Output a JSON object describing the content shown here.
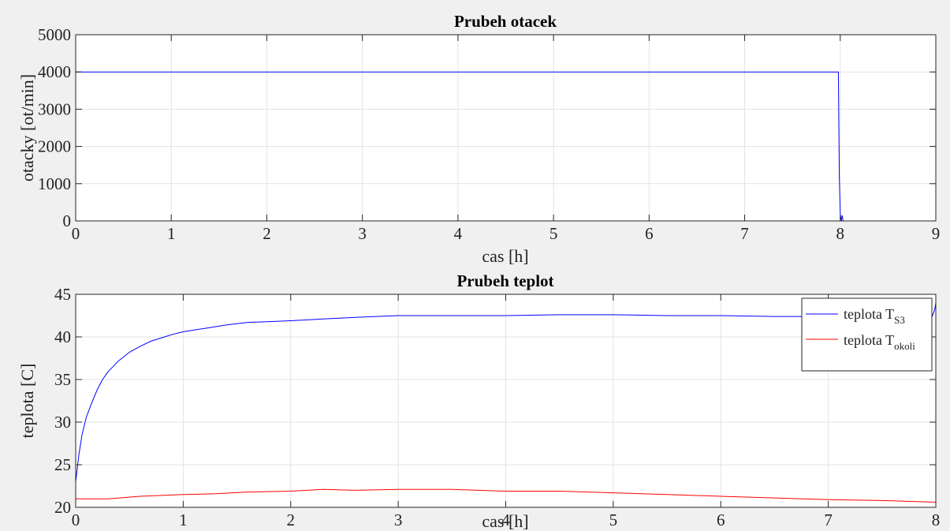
{
  "chart_data": [
    {
      "type": "line",
      "title": "Prubeh otacek",
      "xlabel": "cas [h]",
      "ylabel": "otacky [ot/min]",
      "xlim": [
        0,
        9
      ],
      "ylim": [
        0,
        5000
      ],
      "xticks": [
        0,
        1,
        2,
        3,
        4,
        5,
        6,
        7,
        8,
        9
      ],
      "yticks": [
        0,
        1000,
        2000,
        3000,
        4000,
        5000
      ],
      "grid": true,
      "series": [
        {
          "color": "#0000ff",
          "x": [
            0,
            7.98,
            7.99,
            8.0,
            8.01,
            8.02,
            8.03,
            9.0
          ],
          "y": [
            4000,
            4000,
            1200,
            200,
            0,
            150,
            0,
            0
          ]
        }
      ]
    },
    {
      "type": "line",
      "title": "Prubeh teplot",
      "xlabel": "cas [h]",
      "ylabel": "teplota [C]",
      "xlim": [
        0,
        8
      ],
      "ylim": [
        20,
        45
      ],
      "xticks": [
        0,
        1,
        2,
        3,
        4,
        5,
        6,
        7,
        8
      ],
      "yticks": [
        20,
        25,
        30,
        35,
        40,
        45
      ],
      "grid": true,
      "legend": "top-right",
      "series": [
        {
          "name": "teplota T",
          "name_sub": "S3",
          "color": "#0000ff",
          "x": [
            0,
            0.03,
            0.06,
            0.1,
            0.15,
            0.2,
            0.25,
            0.3,
            0.4,
            0.5,
            0.6,
            0.7,
            0.8,
            0.9,
            1.0,
            1.2,
            1.4,
            1.6,
            1.8,
            2.0,
            2.3,
            2.6,
            3.0,
            3.5,
            4.0,
            4.5,
            5.0,
            5.5,
            6.0,
            6.5,
            7.0,
            7.5,
            7.9,
            7.92,
            7.96,
            7.99,
            8.0
          ],
          "y": [
            23.0,
            26.2,
            28.6,
            30.6,
            32.3,
            33.8,
            35.0,
            35.9,
            37.2,
            38.2,
            38.9,
            39.5,
            39.9,
            40.3,
            40.6,
            41.0,
            41.4,
            41.7,
            41.8,
            41.9,
            42.1,
            42.3,
            42.5,
            42.5,
            42.5,
            42.6,
            42.6,
            42.5,
            42.5,
            42.4,
            42.4,
            42.4,
            42.3,
            42.2,
            42.2,
            43.2,
            44.0
          ]
        },
        {
          "name": "teplota T",
          "name_sub": "okoli",
          "color": "#ff0000",
          "x": [
            0,
            0.3,
            0.6,
            1.0,
            1.3,
            1.6,
            2.0,
            2.3,
            2.6,
            3.0,
            3.5,
            4.0,
            4.5,
            5.0,
            5.5,
            6.0,
            6.5,
            7.0,
            7.5,
            8.0
          ],
          "y": [
            21.0,
            21.0,
            21.3,
            21.5,
            21.6,
            21.8,
            21.9,
            22.1,
            22.0,
            22.1,
            22.1,
            21.9,
            21.9,
            21.7,
            21.5,
            21.3,
            21.1,
            20.9,
            20.8,
            20.6
          ]
        }
      ]
    }
  ]
}
